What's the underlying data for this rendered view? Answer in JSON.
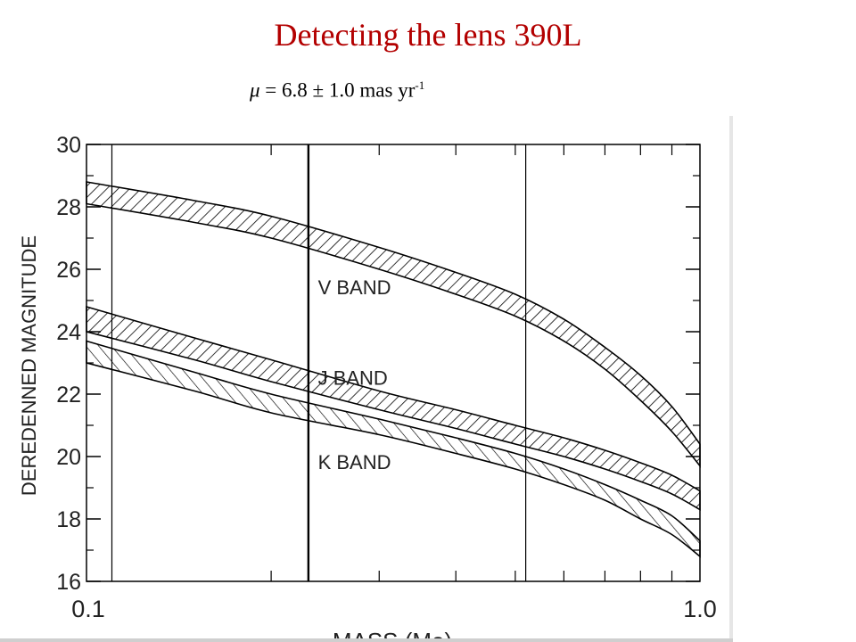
{
  "title": "Detecting the lens 390L",
  "subtitle": {
    "mu_symbol": "μ",
    "expression": " = 6.8 ± 1.0 mas yr",
    "exponent": "-1"
  },
  "chart_data": {
    "type": "line",
    "xscale": "log",
    "xlim": [
      0.1,
      1.0
    ],
    "ylim": [
      16,
      30
    ],
    "xlabel": "MASS (Mo)",
    "ylabel": "DEREDENNED MAGNITUDE",
    "xtick_labels": [
      "0.1",
      "1.0"
    ],
    "yticks": [
      16,
      18,
      20,
      22,
      24,
      26,
      28,
      30
    ],
    "vertical_lines": [
      {
        "x": 0.11,
        "style": "thin"
      },
      {
        "x": 0.23,
        "style": "thick"
      },
      {
        "x": 0.52,
        "style": "thin"
      }
    ],
    "series": [
      {
        "name": "V BAND",
        "label_at": [
          0.22,
          25.2
        ],
        "x": [
          0.1,
          0.15,
          0.2,
          0.3,
          0.4,
          0.5,
          0.6,
          0.7,
          0.8,
          0.9,
          1.0
        ],
        "upper": [
          28.8,
          28.2,
          27.7,
          26.7,
          25.9,
          25.2,
          24.4,
          23.5,
          22.6,
          21.6,
          20.4
        ],
        "lower": [
          28.1,
          27.5,
          27.0,
          26.0,
          25.2,
          24.5,
          23.7,
          22.8,
          21.8,
          20.8,
          19.7
        ]
      },
      {
        "name": "J BAND",
        "label_at": [
          0.22,
          22.3
        ],
        "x": [
          0.1,
          0.15,
          0.2,
          0.3,
          0.4,
          0.5,
          0.6,
          0.7,
          0.8,
          0.9,
          1.0
        ],
        "upper": [
          24.8,
          23.8,
          23.1,
          22.1,
          21.5,
          21.0,
          20.6,
          20.2,
          19.8,
          19.4,
          18.9
        ],
        "lower": [
          24.0,
          23.1,
          22.4,
          21.5,
          20.9,
          20.4,
          20.0,
          19.6,
          19.2,
          18.8,
          18.3
        ]
      },
      {
        "name": "K BAND",
        "label_at": [
          0.22,
          19.6
        ],
        "x": [
          0.1,
          0.15,
          0.2,
          0.3,
          0.4,
          0.5,
          0.6,
          0.7,
          0.8,
          0.9,
          1.0
        ],
        "upper": [
          23.7,
          22.7,
          22.0,
          21.2,
          20.6,
          20.1,
          19.6,
          19.1,
          18.6,
          18.1,
          17.3
        ],
        "lower": [
          23.0,
          22.1,
          21.4,
          20.7,
          20.1,
          19.6,
          19.1,
          18.6,
          18.0,
          17.5,
          16.8
        ]
      }
    ]
  }
}
